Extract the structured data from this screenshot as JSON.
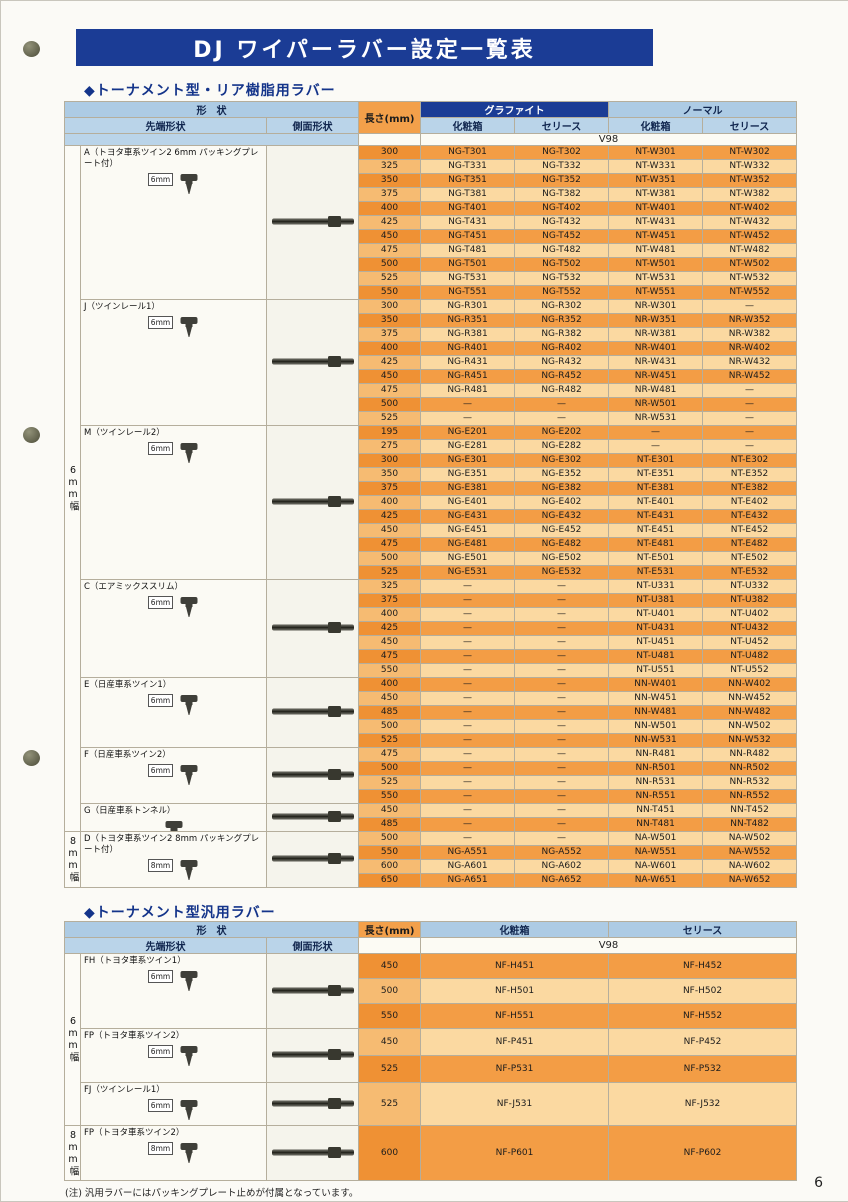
{
  "page": {
    "title": "DJ ワイパーラバー設定一覧表",
    "page_number": "6",
    "footnote": "(注) 汎用ラバーにはパッキングプレート止めが付属となっています。"
  },
  "icons": {
    "tip_shape": "tip-shape-icon",
    "side_profile": "side-profile-icon",
    "hole_punch": "hole-punch"
  },
  "colors": {
    "banner_navy": "#1b3c95",
    "header_blue": "#adcbe4",
    "row_orange_dark": "#f39d45",
    "row_orange_light": "#fbd9a1"
  },
  "table1": {
    "section_title": "◆トーナメント型・リア樹脂用ラバー",
    "headers": {
      "shape": "形　状",
      "tip": "先端形状",
      "side": "側面形状",
      "length": "長さ(mm)",
      "graphite": "グラファイト",
      "normal": "ノーマル",
      "box": "化粧箱",
      "series": "セリース",
      "v98": "V98"
    },
    "width_sections": [
      {
        "label": "6mm幅",
        "groups": [
          {
            "name": "A（トヨタ車系ツイン2 6mm パッキングプレート付）",
            "size": "6mm",
            "rows": [
              [
                "300",
                "NG-T301",
                "NG-T302",
                "NT-W301",
                "NT-W302"
              ],
              [
                "325",
                "NG-T331",
                "NG-T332",
                "NT-W331",
                "NT-W332"
              ],
              [
                "350",
                "NG-T351",
                "NG-T352",
                "NT-W351",
                "NT-W352"
              ],
              [
                "375",
                "NG-T381",
                "NG-T382",
                "NT-W381",
                "NT-W382"
              ],
              [
                "400",
                "NG-T401",
                "NG-T402",
                "NT-W401",
                "NT-W402"
              ],
              [
                "425",
                "NG-T431",
                "NG-T432",
                "NT-W431",
                "NT-W432"
              ],
              [
                "450",
                "NG-T451",
                "NG-T452",
                "NT-W451",
                "NT-W452"
              ],
              [
                "475",
                "NG-T481",
                "NG-T482",
                "NT-W481",
                "NT-W482"
              ],
              [
                "500",
                "NG-T501",
                "NG-T502",
                "NT-W501",
                "NT-W502"
              ],
              [
                "525",
                "NG-T531",
                "NG-T532",
                "NT-W531",
                "NT-W532"
              ],
              [
                "550",
                "NG-T551",
                "NG-T552",
                "NT-W551",
                "NT-W552"
              ]
            ]
          },
          {
            "name": "J（ツインレール1）",
            "size": "6mm",
            "rows": [
              [
                "300",
                "NG-R301",
                "NG-R302",
                "NR-W301",
                "—"
              ],
              [
                "350",
                "NG-R351",
                "NG-R352",
                "NR-W351",
                "NR-W352"
              ],
              [
                "375",
                "NG-R381",
                "NG-R382",
                "NR-W381",
                "NR-W382"
              ],
              [
                "400",
                "NG-R401",
                "NG-R402",
                "NR-W401",
                "NR-W402"
              ],
              [
                "425",
                "NG-R431",
                "NG-R432",
                "NR-W431",
                "NR-W432"
              ],
              [
                "450",
                "NG-R451",
                "NG-R452",
                "NR-W451",
                "NR-W452"
              ],
              [
                "475",
                "NG-R481",
                "NG-R482",
                "NR-W481",
                "—"
              ],
              [
                "500",
                "—",
                "—",
                "NR-W501",
                "—"
              ],
              [
                "525",
                "—",
                "—",
                "NR-W531",
                "—"
              ]
            ]
          },
          {
            "name": "M（ツインレール2）",
            "size": "6mm",
            "rows": [
              [
                "195",
                "NG-E201",
                "NG-E202",
                "—",
                "—"
              ],
              [
                "275",
                "NG-E281",
                "NG-E282",
                "—",
                "—"
              ],
              [
                "300",
                "NG-E301",
                "NG-E302",
                "NT-E301",
                "NT-E302"
              ],
              [
                "350",
                "NG-E351",
                "NG-E352",
                "NT-E351",
                "NT-E352"
              ],
              [
                "375",
                "NG-E381",
                "NG-E382",
                "NT-E381",
                "NT-E382"
              ],
              [
                "400",
                "NG-E401",
                "NG-E402",
                "NT-E401",
                "NT-E402"
              ],
              [
                "425",
                "NG-E431",
                "NG-E432",
                "NT-E431",
                "NT-E432"
              ],
              [
                "450",
                "NG-E451",
                "NG-E452",
                "NT-E451",
                "NT-E452"
              ],
              [
                "475",
                "NG-E481",
                "NG-E482",
                "NT-E481",
                "NT-E482"
              ],
              [
                "500",
                "NG-E501",
                "NG-E502",
                "NT-E501",
                "NT-E502"
              ],
              [
                "525",
                "NG-E531",
                "NG-E532",
                "NT-E531",
                "NT-E532"
              ]
            ]
          },
          {
            "name": "C（エアミックススリム）",
            "size": "6mm",
            "rows": [
              [
                "325",
                "—",
                "—",
                "NT-U331",
                "NT-U332"
              ],
              [
                "375",
                "—",
                "—",
                "NT-U381",
                "NT-U382"
              ],
              [
                "400",
                "—",
                "—",
                "NT-U401",
                "NT-U402"
              ],
              [
                "425",
                "—",
                "—",
                "NT-U431",
                "NT-U432"
              ],
              [
                "450",
                "—",
                "—",
                "NT-U451",
                "NT-U452"
              ],
              [
                "475",
                "—",
                "—",
                "NT-U481",
                "NT-U482"
              ],
              [
                "550",
                "—",
                "—",
                "NT-U551",
                "NT-U552"
              ]
            ]
          },
          {
            "name": "E（日産車系ツイン1）",
            "size": "6mm",
            "rows": [
              [
                "400",
                "—",
                "—",
                "NN-W401",
                "NN-W402"
              ],
              [
                "450",
                "—",
                "—",
                "NN-W451",
                "NN-W452"
              ],
              [
                "485",
                "—",
                "—",
                "NN-W481",
                "NN-W482"
              ],
              [
                "500",
                "—",
                "—",
                "NN-W501",
                "NN-W502"
              ],
              [
                "525",
                "—",
                "—",
                "NN-W531",
                "NN-W532"
              ]
            ]
          },
          {
            "name": "F（日産車系ツイン2）",
            "size": "6mm",
            "rows": [
              [
                "475",
                "—",
                "—",
                "NN-R481",
                "NN-R482"
              ],
              [
                "500",
                "—",
                "—",
                "NN-R501",
                "NN-R502"
              ],
              [
                "525",
                "—",
                "—",
                "NN-R531",
                "NN-R532"
              ],
              [
                "550",
                "—",
                "—",
                "NN-R551",
                "NN-R552"
              ]
            ]
          },
          {
            "name": "G（日産車系トンネル）",
            "size": null,
            "rows": [
              [
                "450",
                "—",
                "—",
                "NN-T451",
                "NN-T452"
              ],
              [
                "485",
                "—",
                "—",
                "NN-T481",
                "NN-T482"
              ]
            ]
          }
        ]
      },
      {
        "label": "8mm幅",
        "groups": [
          {
            "name": "D（トヨタ車系ツイン2 8mm パッキングプレート付）",
            "size": "8mm",
            "rows": [
              [
                "500",
                "—",
                "—",
                "NA-W501",
                "NA-W502"
              ],
              [
                "550",
                "NG-A551",
                "NG-A552",
                "NA-W551",
                "NA-W552"
              ],
              [
                "600",
                "NG-A601",
                "NG-A602",
                "NA-W601",
                "NA-W602"
              ],
              [
                "650",
                "NG-A651",
                "NG-A652",
                "NA-W651",
                "NA-W652"
              ]
            ]
          }
        ]
      }
    ]
  },
  "table2": {
    "section_title": "◆トーナメント型汎用ラバー",
    "headers": {
      "shape": "形　状",
      "tip": "先端形状",
      "side": "側面形状",
      "length": "長さ(mm)",
      "box": "化粧箱",
      "series": "セリース",
      "v98": "V98"
    },
    "width_sections": [
      {
        "label": "6mm幅",
        "groups": [
          {
            "name": "FH（トヨタ車系ツイン1）",
            "size": "6mm",
            "rows": [
              [
                "450",
                "NF-H451",
                "NF-H452"
              ],
              [
                "500",
                "NF-H501",
                "NF-H502"
              ],
              [
                "550",
                "NF-H551",
                "NF-H552"
              ]
            ]
          },
          {
            "name": "FP（トヨタ車系ツイン2）",
            "size": "6mm",
            "rows": [
              [
                "450",
                "NF-P451",
                "NF-P452"
              ],
              [
                "525",
                "NF-P531",
                "NF-P532"
              ]
            ]
          },
          {
            "name": "FJ（ツインレール1）",
            "size": "6mm",
            "rows": [
              [
                "525",
                "NF-J531",
                "NF-J532"
              ]
            ]
          }
        ]
      },
      {
        "label": "8mm幅",
        "groups": [
          {
            "name": "FP（トヨタ車系ツイン2）",
            "size": "8mm",
            "rows": [
              [
                "600",
                "NF-P601",
                "NF-P602"
              ]
            ]
          }
        ]
      }
    ]
  }
}
